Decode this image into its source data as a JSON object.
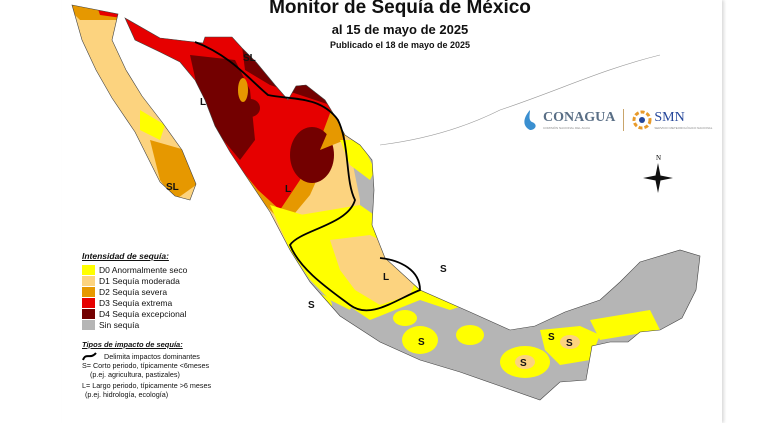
{
  "header": {
    "title": "Monitor de Sequía de México",
    "date": "al 15 de mayo de 2025",
    "published": "Publicado el 18 de mayo de 2025"
  },
  "legend": {
    "intensity_title": "Intensidad de sequía:",
    "items": [
      {
        "label": "D0 Anormalmente seco",
        "color": "#ffff00"
      },
      {
        "label": "D1 Sequía moderada",
        "color": "#fcd37f"
      },
      {
        "label": "D2 Sequía severa",
        "color": "#e69800"
      },
      {
        "label": "D3 Sequía extrema",
        "color": "#e60000"
      },
      {
        "label": "D4 Sequía excepcional",
        "color": "#730000"
      },
      {
        "label": "Sin sequía",
        "color": "#b5b5b5"
      }
    ],
    "impact_title": "Tipos de impacto de sequía:",
    "impact_line": "Delimita impactos dominantes",
    "short": "S= Corto periodo, típicamente <6meses",
    "short_ex": "(p.ej. agricultura, pastizales)",
    "long": "L= Largo periodo, típicamente >6 meses",
    "long_ex": "(p.ej. hidrología, ecología)"
  },
  "logos": {
    "conagua": "CONAGUA",
    "conagua_sub": "COMISIÓN NACIONAL DEL AGUA",
    "smn": "SMN",
    "smn_sub": "SERVICIO METEOROLÓGICO NACIONAL"
  },
  "compass": {
    "north": "N"
  },
  "map_labels": {
    "sl_north": "SL",
    "sl_baja": "SL",
    "l_sonora": "L",
    "l_chihuahua": "L",
    "l_center": "L",
    "s_west": "S",
    "s_jalisco": "S",
    "s_guerrero": "S",
    "s_chiapas": "S",
    "s_tabasco": "S",
    "s_campeche": "S"
  }
}
